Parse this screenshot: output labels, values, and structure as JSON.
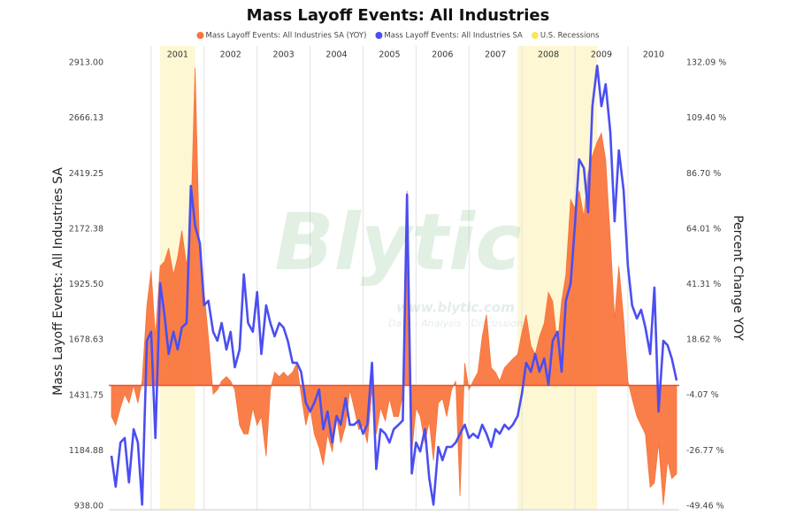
{
  "chart_data": {
    "type": "line",
    "title": "Mass Layoff Events: All Industries",
    "y_label": "Mass Layoff Events: All Industries SA",
    "y2_label": "Percent Change YOY",
    "watermark": {
      "brand": "Blytic",
      "url": "www.blytic.com",
      "tagline": "Data - Analysis - Discussion"
    },
    "xlim": [
      2000.2,
      2010.97
    ],
    "xticks": [
      2001,
      2002,
      2003,
      2004,
      2005,
      2006,
      2007,
      2008,
      2009,
      2010
    ],
    "ylim": [
      938,
      2913
    ],
    "yticks": [
      {
        "value": 938,
        "label": "938.00"
      },
      {
        "value": 1184.88,
        "label": "1184.88"
      },
      {
        "value": 1431.75,
        "label": "1431.75"
      },
      {
        "value": 1678.63,
        "label": "1678.63"
      },
      {
        "value": 1925.5,
        "label": "1925.50"
      },
      {
        "value": 2172.38,
        "label": "2172.38"
      },
      {
        "value": 2419.25,
        "label": "2419.25"
      },
      {
        "value": 2666.13,
        "label": "2666.13"
      },
      {
        "value": 2913,
        "label": "2913.00"
      }
    ],
    "y2lim": [
      -49.46,
      132.09
    ],
    "y2ticks": [
      {
        "value": -49.46,
        "label": "-49.46 %"
      },
      {
        "value": -26.77,
        "label": "-26.77 %"
      },
      {
        "value": -4.07,
        "label": "-4.07 %"
      },
      {
        "value": 18.62,
        "label": "18.62 %"
      },
      {
        "value": 41.31,
        "label": "41.31 %"
      },
      {
        "value": 64.01,
        "label": "64.01 %"
      },
      {
        "value": 86.7,
        "label": "86.70 %"
      },
      {
        "value": 109.4,
        "label": "109.40 %"
      },
      {
        "value": 132.09,
        "label": "132.09 %"
      }
    ],
    "grid": true,
    "recessions": {
      "name": "U.S. Recessions",
      "color": "#f7e463",
      "periods": [
        [
          2001.17,
          2001.83
        ],
        [
          2007.92,
          2009.42
        ]
      ]
    },
    "x": [
      2000.25,
      2000.33,
      2000.42,
      2000.5,
      2000.58,
      2000.67,
      2000.75,
      2000.83,
      2000.92,
      2001.0,
      2001.08,
      2001.17,
      2001.25,
      2001.33,
      2001.42,
      2001.5,
      2001.58,
      2001.67,
      2001.75,
      2001.83,
      2001.92,
      2002.0,
      2002.08,
      2002.17,
      2002.25,
      2002.33,
      2002.42,
      2002.5,
      2002.58,
      2002.67,
      2002.75,
      2002.83,
      2002.92,
      2003.0,
      2003.08,
      2003.17,
      2003.25,
      2003.33,
      2003.42,
      2003.5,
      2003.58,
      2003.67,
      2003.75,
      2003.83,
      2003.92,
      2004.0,
      2004.08,
      2004.17,
      2004.25,
      2004.33,
      2004.42,
      2004.5,
      2004.58,
      2004.67,
      2004.75,
      2004.83,
      2004.92,
      2005.0,
      2005.08,
      2005.17,
      2005.25,
      2005.33,
      2005.42,
      2005.5,
      2005.58,
      2005.67,
      2005.75,
      2005.83,
      2005.92,
      2006.0,
      2006.08,
      2006.17,
      2006.25,
      2006.33,
      2006.42,
      2006.5,
      2006.58,
      2006.67,
      2006.75,
      2006.83,
      2006.92,
      2007.0,
      2007.08,
      2007.17,
      2007.25,
      2007.33,
      2007.42,
      2007.5,
      2007.58,
      2007.67,
      2007.75,
      2007.83,
      2007.92,
      2008.0,
      2008.08,
      2008.17,
      2008.25,
      2008.33,
      2008.42,
      2008.5,
      2008.58,
      2008.67,
      2008.75,
      2008.83,
      2008.92,
      2009.0,
      2009.08,
      2009.17,
      2009.25,
      2009.33,
      2009.42,
      2009.5,
      2009.58,
      2009.67,
      2009.75,
      2009.83,
      2009.92,
      2010.0,
      2010.08,
      2010.17,
      2010.25,
      2010.33,
      2010.42,
      2010.5,
      2010.58,
      2010.67,
      2010.75,
      2010.83,
      2010.92
    ],
    "series": [
      {
        "name": "Mass Layoff Events: All Industries SA (YOY)",
        "color": "#f9733a",
        "axis": "y2",
        "area": true,
        "values": [
          -12.7,
          -16.3,
          -9.1,
          -3.6,
          -7.2,
          0,
          -7.2,
          1.8,
          32.6,
          47.1,
          19.9,
          48.9,
          50.7,
          56.2,
          45.3,
          52.5,
          63.4,
          48.9,
          67.0,
          130,
          48.9,
          38.1,
          19.9,
          -3.6,
          -1.8,
          1.8,
          3.6,
          1.8,
          -1.8,
          -16.3,
          -19.9,
          -19.9,
          -9.1,
          -16.3,
          -12.7,
          -29.0,
          -1.8,
          5.4,
          3.6,
          5.4,
          3.6,
          5.4,
          9.1,
          -3.6,
          -16.3,
          -9.1,
          -19.9,
          -25.4,
          -32.6,
          -19.9,
          -27.2,
          -12.7,
          -23.6,
          -16.3,
          -1.8,
          -9.1,
          -18.1,
          -16.3,
          -23.6,
          -1.8,
          -19.9,
          -9.1,
          -14.5,
          -5.4,
          -12.7,
          -12.7,
          -3.6,
          79.7,
          -27.2,
          -9.1,
          -12.7,
          -23.6,
          -14.5,
          -30.8,
          -7.2,
          -5.4,
          -12.7,
          -1.8,
          1.8,
          -45.3,
          9.1,
          -1.8,
          1.8,
          5.4,
          19.9,
          29.0,
          7.2,
          5.4,
          1.8,
          7.2,
          9.1,
          10.9,
          12.7,
          21.7,
          29.0,
          16.3,
          12.7,
          19.9,
          25.4,
          38.1,
          34.4,
          16.3,
          34.4,
          45.3,
          76.1,
          72.5,
          79.7,
          68.9,
          87.0,
          94.2,
          99.7,
          103.3,
          92.4,
          59.8,
          27.2,
          48.9,
          27.2,
          1.8,
          -5.4,
          -12.7,
          -16.3,
          -19.9,
          -41.7,
          -39.9,
          -23.6,
          -48.9,
          -30.8,
          -38.1,
          -36.2
        ]
      },
      {
        "name": "Mass Layoff Events: All Industries SA",
        "color": "#4b4ef0",
        "axis": "y",
        "values": [
          1163,
          1025,
          1222,
          1242,
          1044,
          1281,
          1222,
          945,
          1675,
          1715,
          1242,
          1931,
          1793,
          1616,
          1715,
          1636,
          1734,
          1754,
          2365,
          2188,
          2109,
          1833,
          1853,
          1715,
          1675,
          1754,
          1636,
          1715,
          1557,
          1636,
          1971,
          1754,
          1715,
          1892,
          1616,
          1833,
          1754,
          1695,
          1754,
          1734,
          1675,
          1577,
          1577,
          1537,
          1399,
          1360,
          1399,
          1458,
          1281,
          1360,
          1222,
          1340,
          1301,
          1419,
          1301,
          1301,
          1320,
          1261,
          1301,
          1577,
          1104,
          1281,
          1261,
          1222,
          1281,
          1301,
          1320,
          2326,
          1084,
          1222,
          1182,
          1281,
          1064,
          945,
          1202,
          1143,
          1202,
          1202,
          1222,
          1261,
          1301,
          1242,
          1261,
          1242,
          1301,
          1261,
          1202,
          1281,
          1261,
          1301,
          1281,
          1301,
          1340,
          1439,
          1577,
          1537,
          1616,
          1537,
          1596,
          1478,
          1675,
          1715,
          1537,
          1853,
          1931,
          2188,
          2483,
          2444,
          2247,
          2720,
          2900,
          2720,
          2818,
          2602,
          2207,
          2523,
          2345,
          2010,
          1833,
          1774,
          1813,
          1734,
          1616,
          1912,
          1360,
          1675,
          1655,
          1596,
          1498
        ]
      }
    ]
  }
}
